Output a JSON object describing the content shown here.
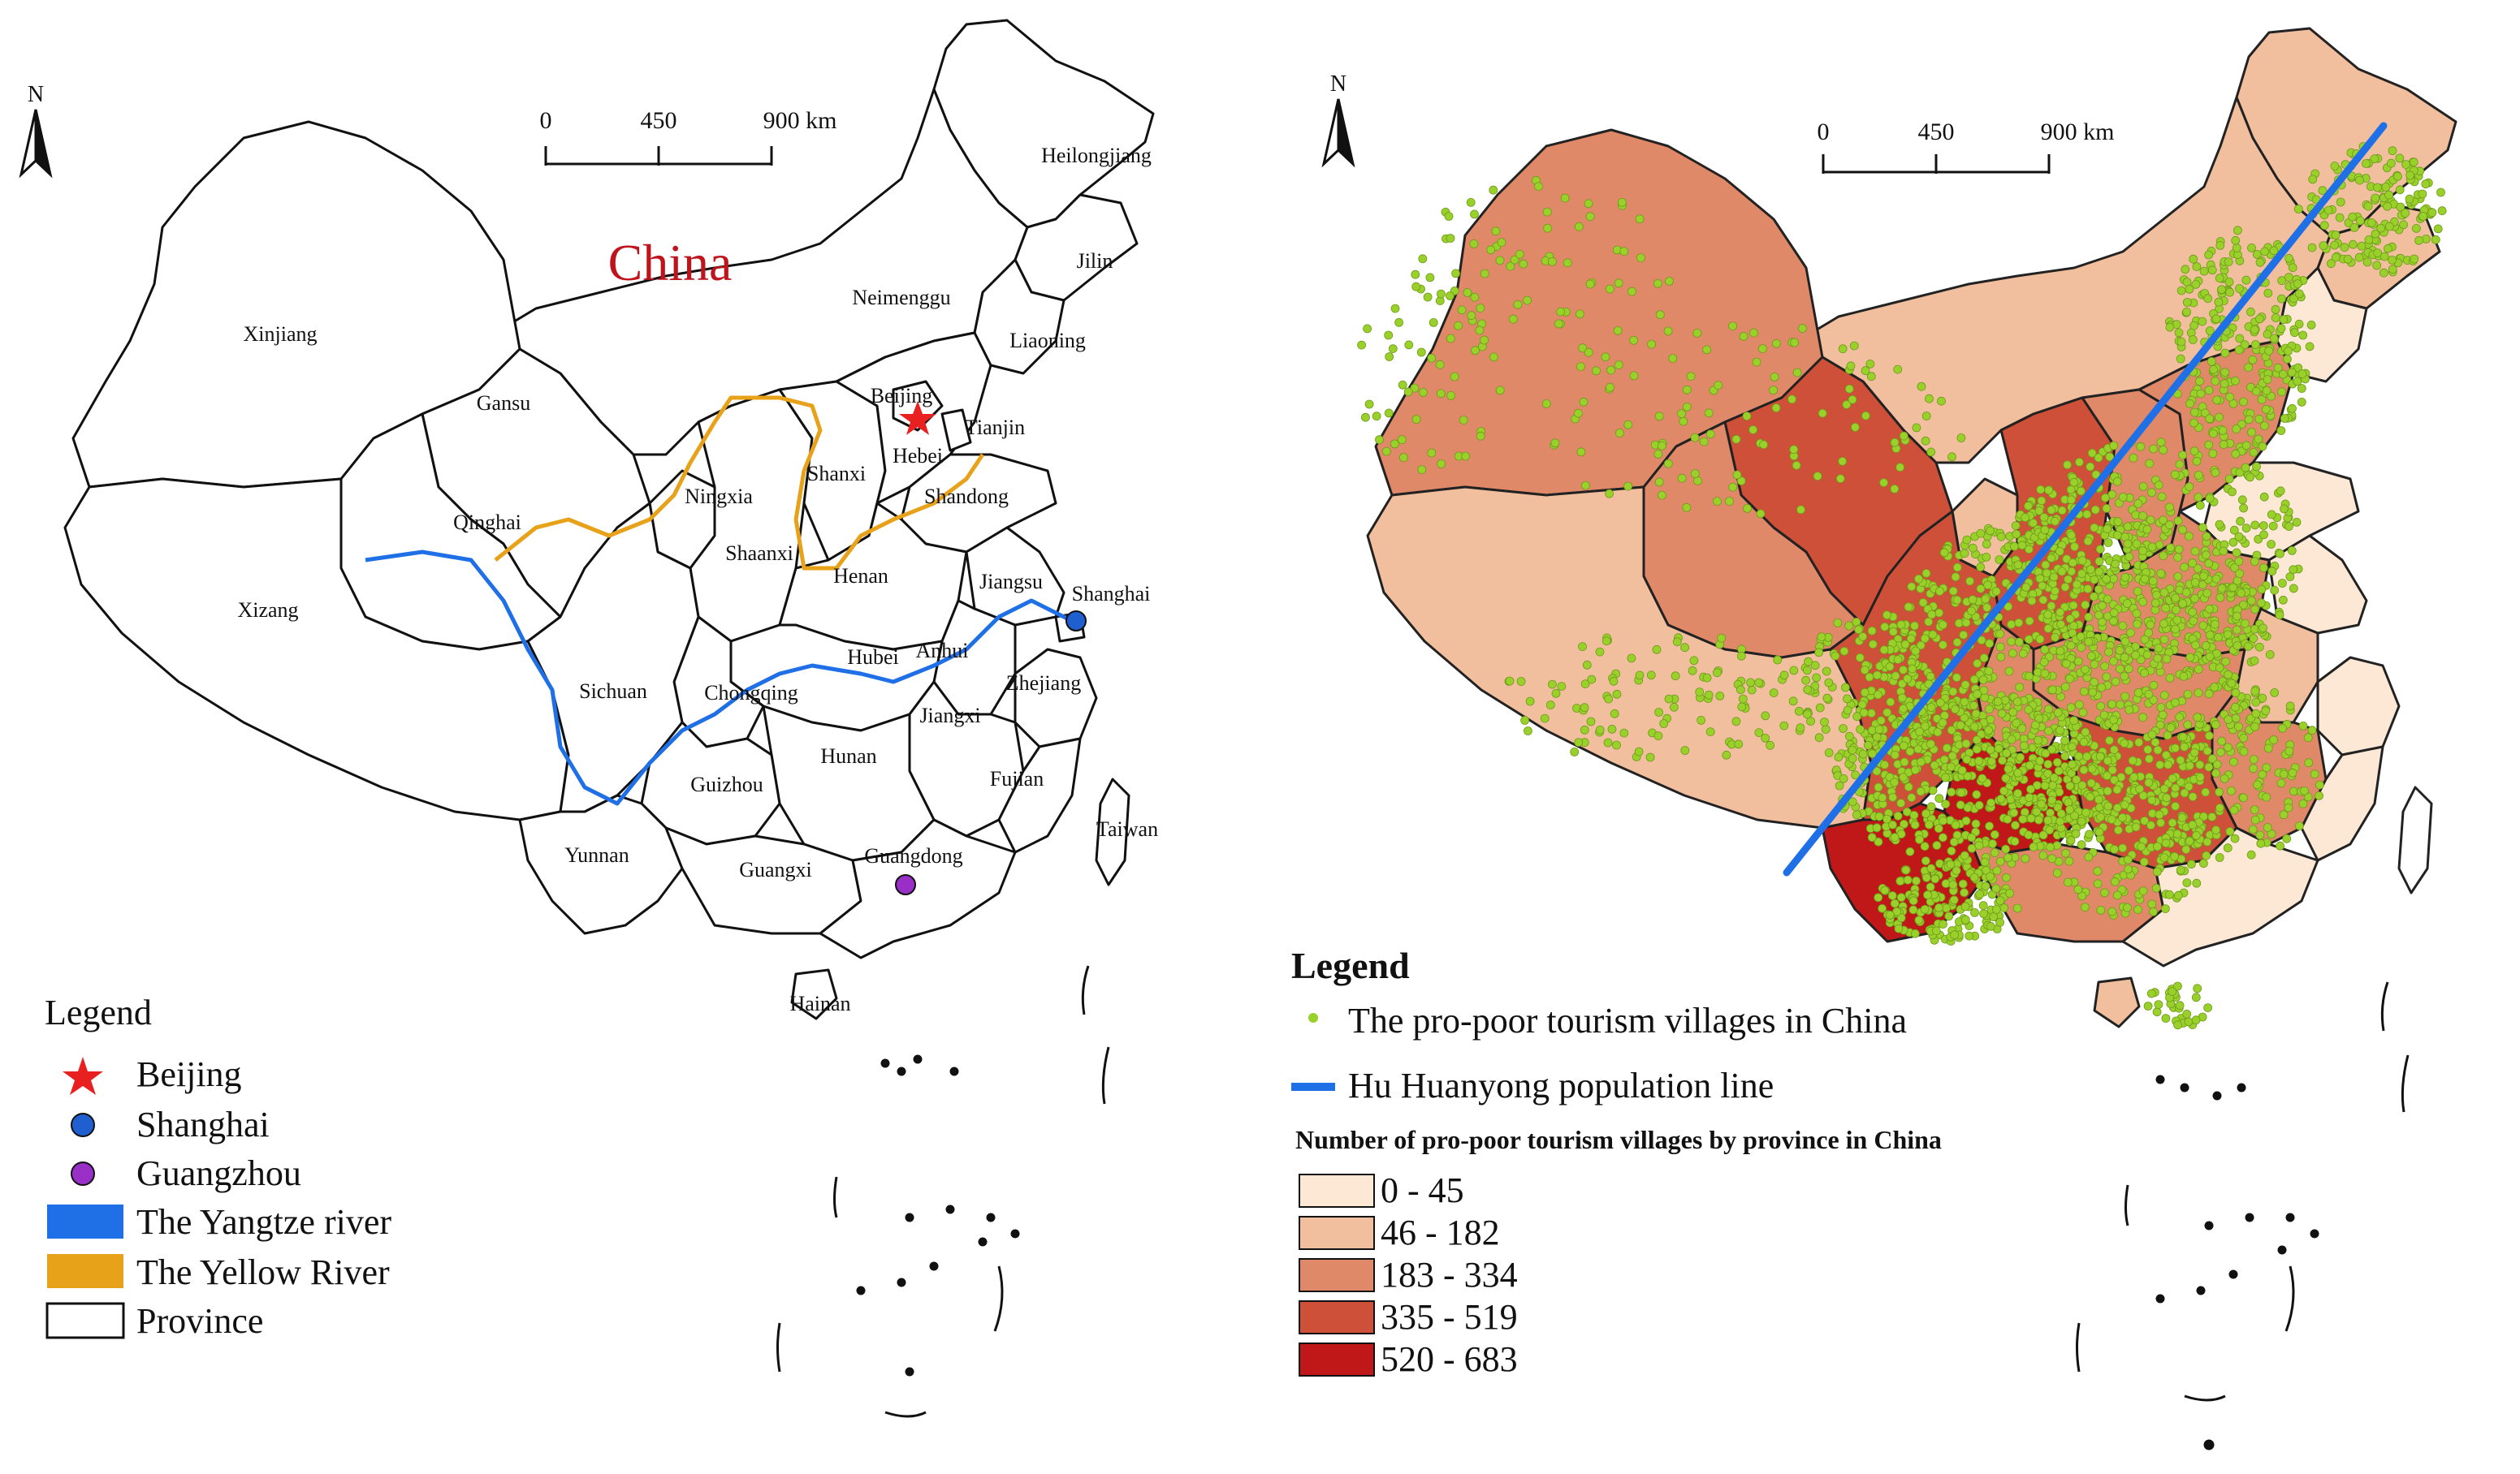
{
  "left_map": {
    "north_label": "N",
    "scale": {
      "ticks": [
        "0",
        "450",
        "900 km"
      ]
    },
    "country_label": "China",
    "province_labels": [
      "Heilongjiang",
      "Jilin",
      "Liaoning",
      "Neimenggu",
      "Xinjiang",
      "Gansu",
      "Beijing",
      "Tianjin",
      "Hebei",
      "Shanxi",
      "Shandong",
      "Ningxia",
      "Qinghai",
      "Shaanxi",
      "Henan",
      "Jiangsu",
      "Shanghai",
      "Xizang",
      "Sichuan",
      "Hubei",
      "Anhui",
      "Chongqing",
      "Zhejiang",
      "Jiangxi",
      "Hunan",
      "Guizhou",
      "Fujian",
      "Taiwan",
      "Yunnan",
      "Guangxi",
      "Guangdong",
      "Hainan"
    ],
    "legend": {
      "title": "Legend",
      "items": [
        {
          "label": "Beijing",
          "symbol": "star",
          "color": "#e8201f"
        },
        {
          "label": "Shanghai",
          "symbol": "circle",
          "color": "#1f5fcf"
        },
        {
          "label": "Guangzhou",
          "symbol": "circle",
          "color": "#9a2fc7"
        },
        {
          "label": "The Yangtze river",
          "symbol": "rect",
          "color": "#1f6fe6"
        },
        {
          "label": "The Yellow River",
          "symbol": "rect",
          "color": "#e8a21a"
        },
        {
          "label": "Province",
          "symbol": "rect",
          "color": "#ffffff"
        }
      ]
    }
  },
  "right_map": {
    "north_label": "N",
    "scale": {
      "ticks": [
        "0",
        "450",
        "900 km"
      ]
    },
    "legend": {
      "title": "Legend",
      "points_label": "The  pro-poor tourism villages in China",
      "line_label": "Hu Huanyong population line",
      "classes_title": "Number of pro-poor tourism villages by province in China",
      "classes": [
        {
          "label": "0 - 45",
          "color": "#fde8d6"
        },
        {
          "label": "46 - 182",
          "color": "#f2bf9e"
        },
        {
          "label": "183 - 334",
          "color": "#e08968"
        },
        {
          "label": "335 - 519",
          "color": "#cf5038"
        },
        {
          "label": "520 - 683",
          "color": "#c01818"
        }
      ]
    },
    "colors": {
      "points": "#9ad02a",
      "hu_line": "#1f6fe6"
    }
  }
}
